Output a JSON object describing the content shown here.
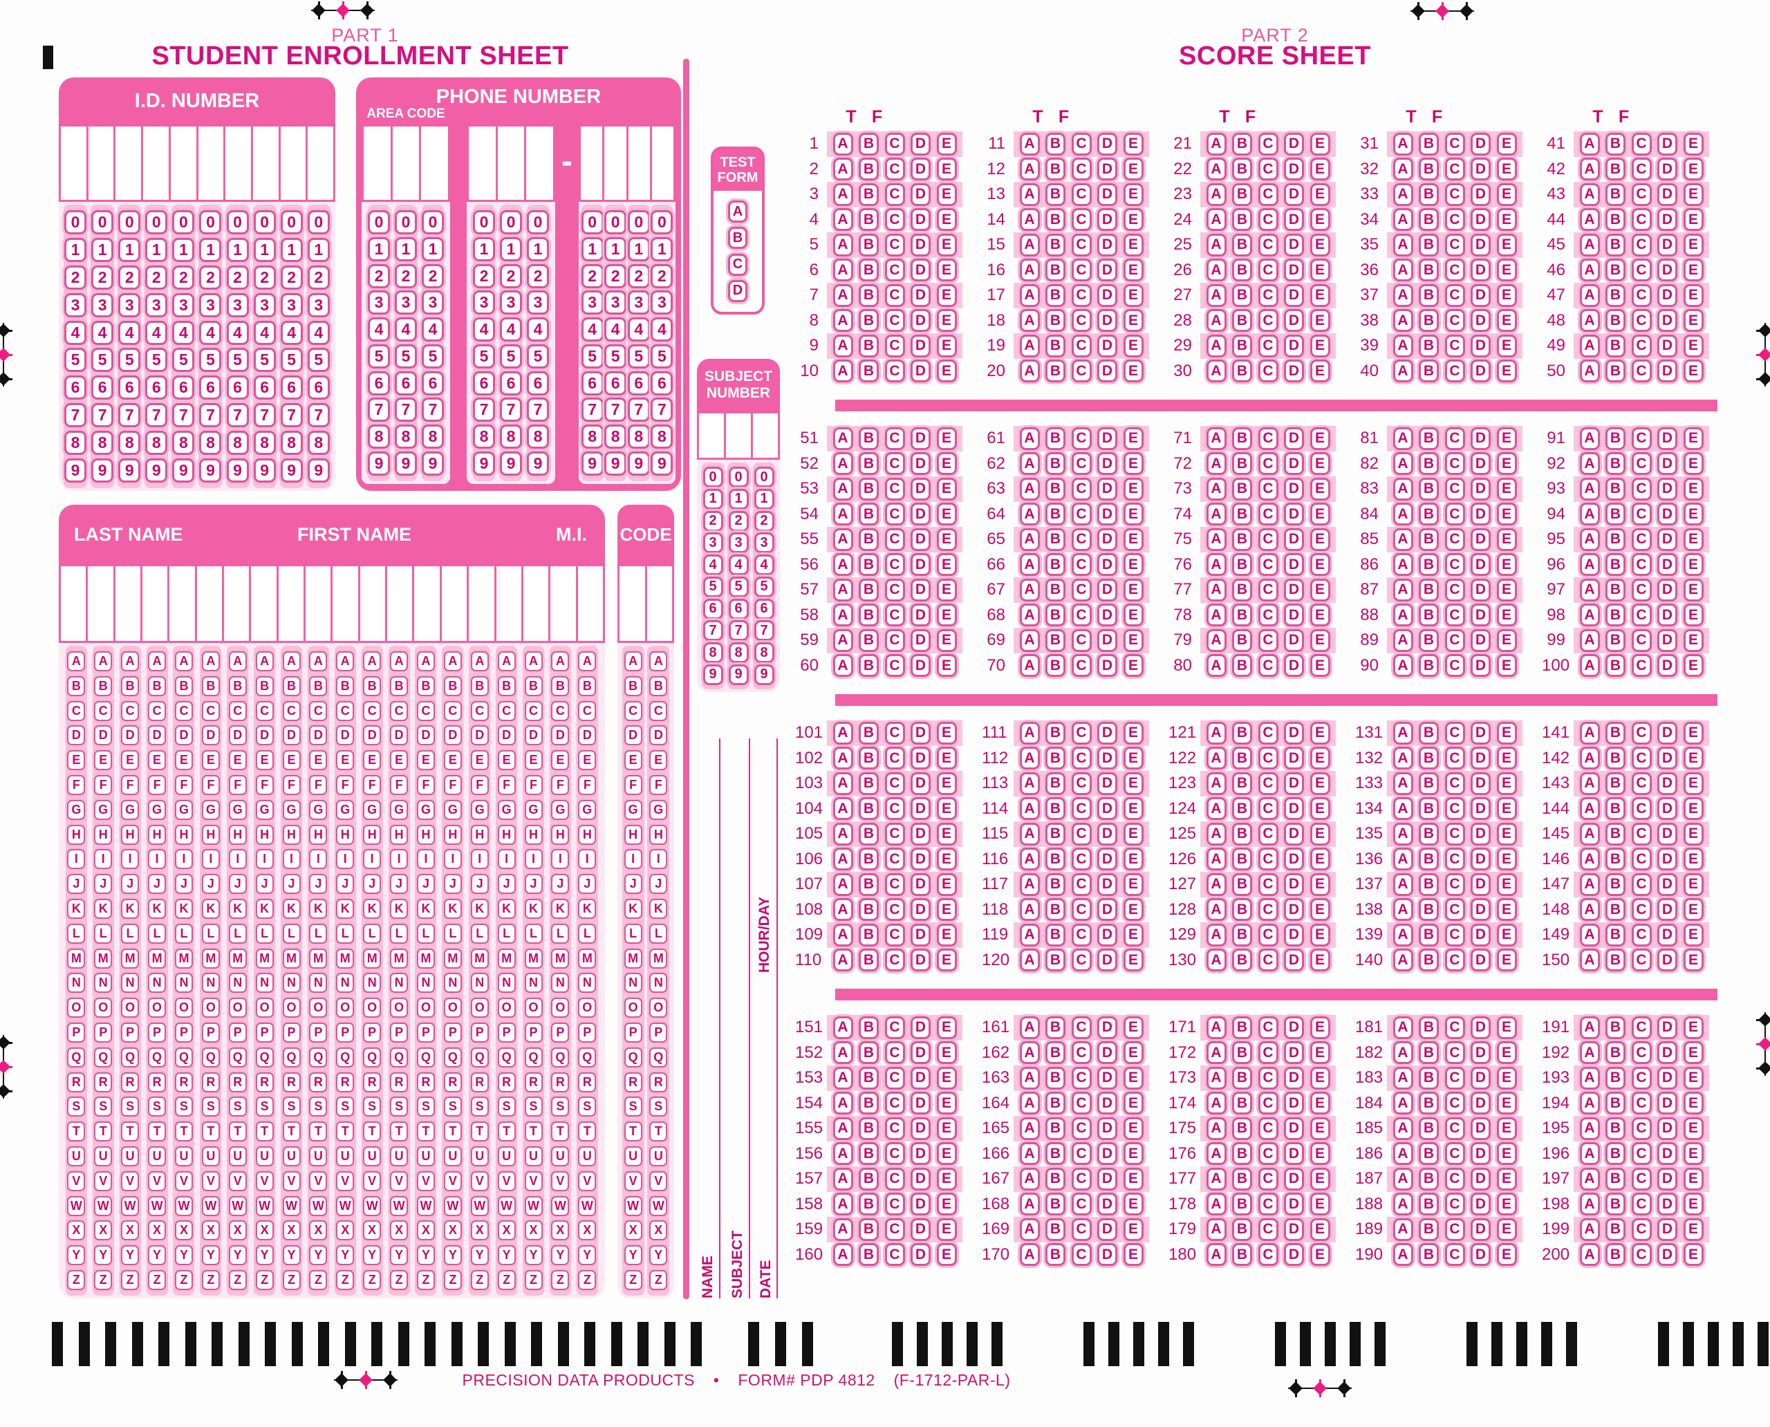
{
  "colors": {
    "header_pink": "#f160a6",
    "band_pink": "#f9c6dd",
    "strip_pink": "#f8c0d9",
    "pale_pink": "#fce9f3",
    "bubble_border": "#d4569c",
    "ink_magenta": "#c4096f",
    "title_magenta": "#d60f7e",
    "part_label_pink": "#e45a9e",
    "registration_pink": "#ec1c83",
    "mark_black": "#111111"
  },
  "digits": "0123456789",
  "alphabet": "ABCDEFGHIJKLMNOPQRSTUVWXYZ",
  "part1": {
    "part_label": "PART 1",
    "title": "STUDENT ENROLLMENT SHEET",
    "id_number": {
      "label": "I.D. NUMBER",
      "columns": 10
    },
    "phone": {
      "label": "PHONE NUMBER",
      "area_code_label": "AREA CODE",
      "group_columns": [
        3,
        3,
        4
      ],
      "separator": "-"
    },
    "test_form": {
      "label_line1": "TEST",
      "label_line2": "FORM",
      "choices": "ABCD"
    },
    "subject_number": {
      "label_line1": "SUBJECT",
      "label_line2": "NUMBER",
      "columns": 3
    },
    "name_grid": {
      "last_name_label": "LAST NAME",
      "first_name_label": "FIRST NAME",
      "middle_initial_label": "M.I.",
      "columns": 20
    },
    "code": {
      "label": "CODE",
      "columns": 2
    },
    "side_labels": {
      "name": "NAME",
      "subject": "SUBJECT",
      "date": "DATE",
      "hour_day": "HOUR/DAY"
    }
  },
  "part2": {
    "part_label": "PART 2",
    "title": "SCORE SHEET",
    "true_false_header": [
      "T",
      "F"
    ],
    "choices": "ABCDE",
    "questions_per_group": 10,
    "groups_per_section": 5,
    "sections": [
      {
        "first_question": 1,
        "last_question": 50
      },
      {
        "first_question": 51,
        "last_question": 100
      },
      {
        "first_question": 101,
        "last_question": 150
      },
      {
        "first_question": 151,
        "last_question": 200
      }
    ]
  },
  "footer": {
    "manufacturer": "PRECISION DATA PRODUCTS",
    "separator": "•",
    "form_number": "FORM# PDP 4812",
    "print_code": "(F-1712-PAR-L)"
  },
  "timing_marks": {
    "long_run_count": 25,
    "triple_count": 3,
    "five_bar_group_count": 5,
    "bars_per_five_group": 5
  }
}
